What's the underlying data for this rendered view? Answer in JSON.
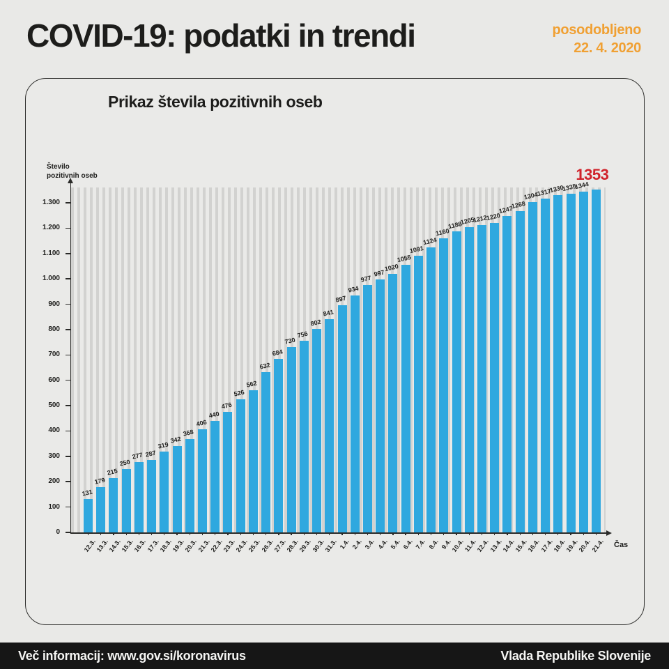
{
  "header": {
    "title": "COVID-19: podatki in trendi",
    "updated_label": "posodobljeno",
    "updated_date": "22. 4. 2020"
  },
  "panel": {
    "chart_title": "Prikaz števila pozitivnih oseb",
    "y_axis_label_line1": "Število",
    "y_axis_label_line2": "pozitivnih oseb",
    "x_axis_label": "Čas"
  },
  "chart_data": {
    "type": "bar",
    "title": "Prikaz števila pozitivnih oseb",
    "xlabel": "Čas",
    "ylabel": "Število pozitivnih oseb",
    "categories": [
      "12.3.",
      "13.3.",
      "14.3.",
      "15.3.",
      "16.3.",
      "17.3.",
      "18.3.",
      "19.3.",
      "20.3.",
      "21.3.",
      "22.3.",
      "23.3.",
      "24.3.",
      "25.3.",
      "26.3.",
      "27.3.",
      "28.3.",
      "29.3.",
      "30.3.",
      "31.3.",
      "1.4.",
      "2.4.",
      "3.4.",
      "4.4.",
      "5.4.",
      "6.4.",
      "7.4.",
      "8.4.",
      "9.4.",
      "10.4.",
      "11.4.",
      "12.4.",
      "13.4.",
      "14.4.",
      "15.4.",
      "16.4.",
      "17.4.",
      "18.4.",
      "19.4.",
      "20.4.",
      "21.4."
    ],
    "values": [
      131,
      179,
      215,
      250,
      277,
      287,
      319,
      342,
      368,
      406,
      440,
      476,
      526,
      562,
      632,
      684,
      730,
      756,
      802,
      841,
      897,
      934,
      977,
      997,
      1020,
      1055,
      1091,
      1124,
      1160,
      1188,
      1205,
      1212,
      1220,
      1247,
      1268,
      1304,
      1317,
      1330,
      1335,
      1344,
      1353
    ],
    "y_tick_values": [
      0,
      100,
      200,
      300,
      400,
      500,
      600,
      700,
      800,
      900,
      1000,
      1100,
      1200,
      1300
    ],
    "y_tick_labels": [
      "0",
      "100",
      "200",
      "300",
      "400",
      "500",
      "600",
      "700",
      "800",
      "900",
      "1.000",
      "1.100",
      "1.200",
      "1.300"
    ],
    "ylim": [
      0,
      1360
    ],
    "grid": "dotted",
    "legend": "none",
    "bar_color": "#2fa8df",
    "highlight_last": true,
    "highlight_color": "#d0232b",
    "last_value": 1353
  },
  "footer": {
    "info": "Več informacij: www.gov.si/koronavirus",
    "government": "Vlada Republike Slovenije"
  },
  "colors": {
    "background": "#e9e9e7",
    "accent_orange": "#f0a033",
    "bar_blue": "#2fa8df",
    "highlight_red": "#d0232b",
    "footer_bg": "#161616",
    "text_dark": "#1d1d1b"
  }
}
